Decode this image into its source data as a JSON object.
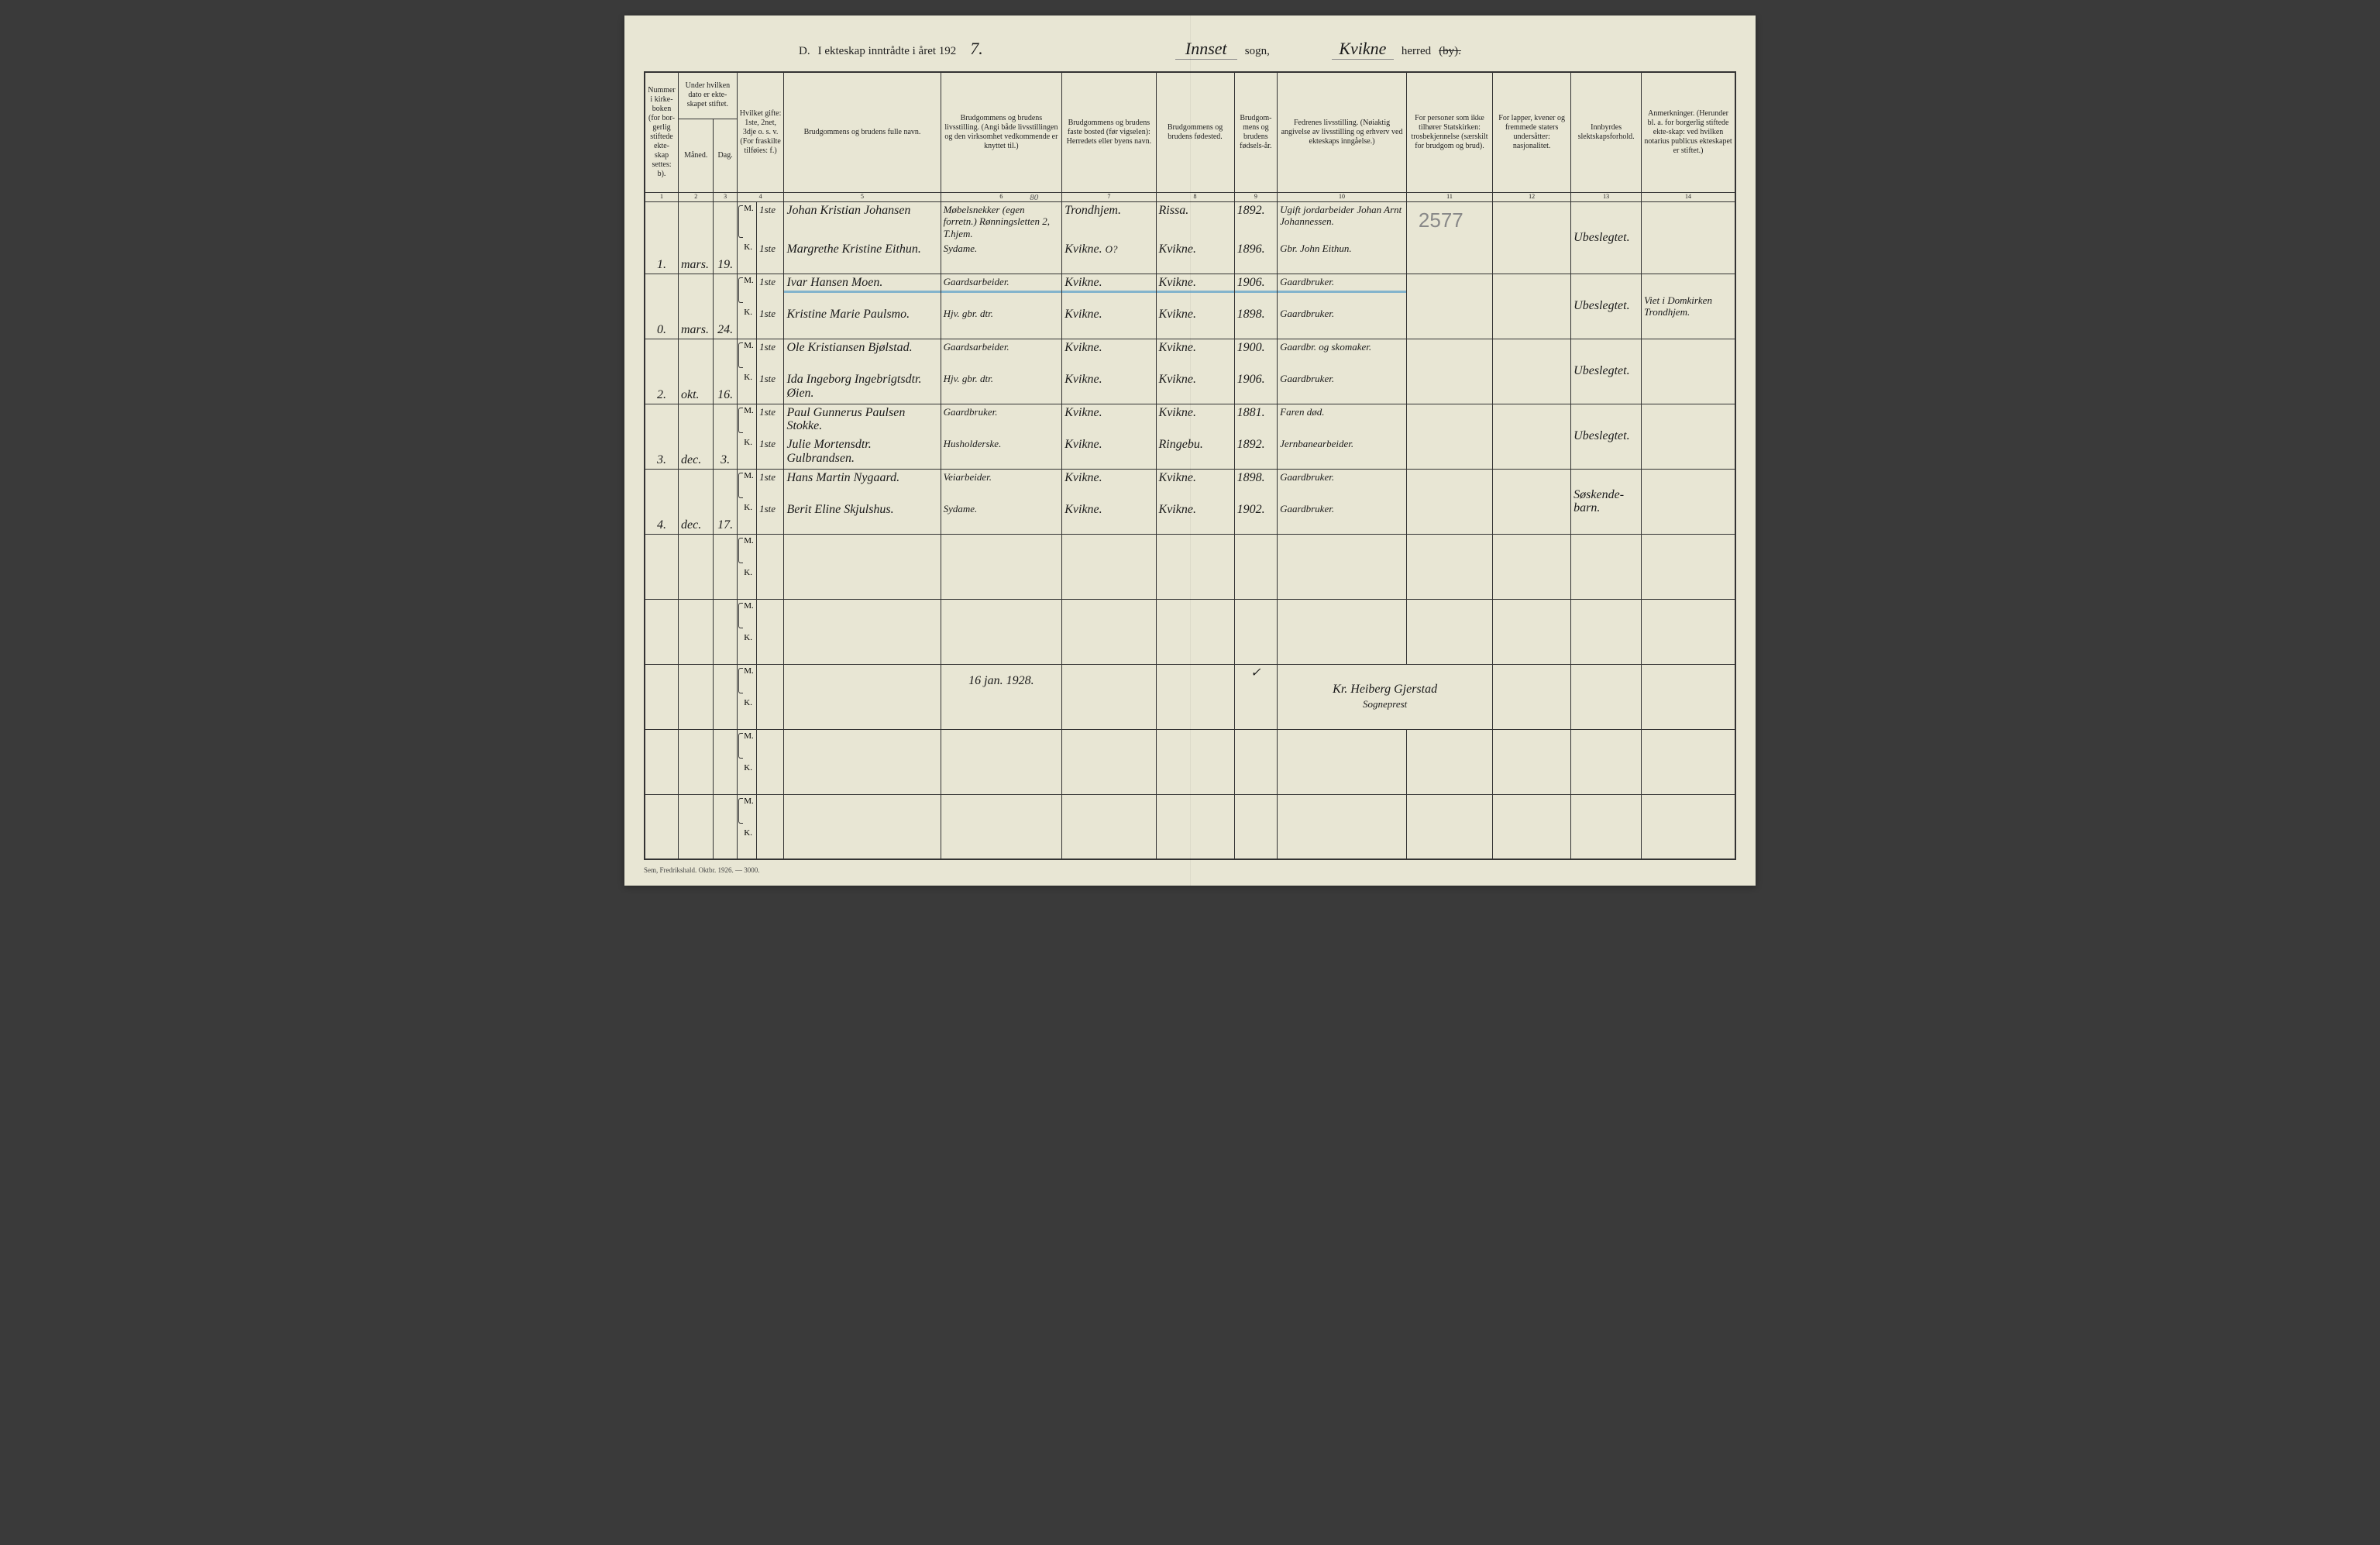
{
  "header": {
    "section_letter": "D.",
    "title_printed_1": "I ekteskap inntrådte i året 192",
    "year_digit": "7.",
    "sogn_label": "sogn,",
    "sogn_value": "Innset",
    "herred_label": "herred",
    "herred_value": "Kvikne",
    "by_struck": "(by)."
  },
  "columns": [
    "Nummer i kirke-boken (for bor-gerlig stiftede ekte-skap settes: b).",
    "Under hvilken dato er ekte-skapet stiftet.",
    "",
    "Hvilket gifte: 1ste, 2net, 3dje o. s. v. (For fraskilte tilføies: f.)",
    "Brudgommens og brudens fulle navn.",
    "Brudgommens og brudens livsstilling. (Angi både livsstillingen og den virksomhet vedkommende er knyttet til.)",
    "Brudgommens og brudens faste bosted (før vigselen): Herredets eller byens navn.",
    "Brudgommens og brudens fødested.",
    "Brudgom-mens og brudens fødsels-år.",
    "Fedrenes livsstilling. (Nøiaktig angivelse av livsstilling og erhverv ved ekteskaps inngåelse.)",
    "For personer som ikke tilhører Statskirken: trosbekjennelse (særskilt for brudgom og brud).",
    "For lapper, kvener og fremmede staters undersåtter: nasjonalitet.",
    "Innbyrdes slektskapsforhold.",
    "Anmerkninger. (Herunder bl. a. for borgerlig stiftede ekte-skap: ved hvilken notarius publicus ekteskapet er stiftet.)"
  ],
  "sub_columns": {
    "col2a": "Måned.",
    "col2b": "Dag."
  },
  "colnums": [
    "1",
    "2",
    "3",
    "4",
    "5",
    "6",
    "7",
    "8",
    "9",
    "10",
    "11",
    "12",
    "13",
    "14"
  ],
  "stamp": {
    "page_num": "80"
  },
  "entries": [
    {
      "num": "1.",
      "month": "mars.",
      "day": "19.",
      "m": {
        "gifte": "1ste",
        "name": "Johan Kristian Johansen",
        "occ": "Møbelsnekker (egen forretn.) Rønningsletten 2, T.hjem.",
        "res": "Trondhjem.",
        "birthplace": "Rissa.",
        "year": "1892.",
        "father": "Ugift jordarbeider Johan Arnt Johannessen."
      },
      "k": {
        "gifte": "1ste",
        "name": "Margrethe Kristine Eithun.",
        "occ": "Sydame.",
        "res": "Kvikne.",
        "res_note": "O?",
        "birthplace": "Kvikne.",
        "year": "1896.",
        "father": "Gbr. John Eithun."
      },
      "pencil": "2577",
      "slekt": "Ubeslegtet.",
      "anm": ""
    },
    {
      "num": "0.",
      "month": "mars.",
      "day": "24.",
      "m": {
        "gifte": "1ste",
        "name": "Ivar Hansen Moen.",
        "occ": "Gaardsarbeider.",
        "res": "Kvikne.",
        "birthplace": "Kvikne.",
        "year": "1906.",
        "father": "Gaardbruker."
      },
      "k": {
        "gifte": "1ste",
        "name": "Kristine Marie Paulsmo.",
        "occ": "Hjv. gbr. dtr.",
        "res": "Kvikne.",
        "birthplace": "Kvikne.",
        "year": "1898.",
        "father": "Gaardbruker."
      },
      "slekt": "Ubeslegtet.",
      "anm": "Viet i Domkirken Trondhjem.",
      "blue_strike": true
    },
    {
      "num": "2.",
      "month": "okt.",
      "day": "16.",
      "m": {
        "gifte": "1ste",
        "name": "Ole Kristiansen Bjølstad.",
        "occ": "Gaardsarbeider.",
        "res": "Kvikne.",
        "birthplace": "Kvikne.",
        "year": "1900.",
        "father": "Gaardbr. og skomaker."
      },
      "k": {
        "gifte": "1ste",
        "name": "Ida Ingeborg Ingebrigtsdtr. Øien.",
        "occ": "Hjv. gbr. dtr.",
        "res": "Kvikne.",
        "birthplace": "Kvikne.",
        "year": "1906.",
        "father": "Gaardbruker."
      },
      "slekt": "Ubeslegtet.",
      "anm": ""
    },
    {
      "num": "3.",
      "month": "dec.",
      "day": "3.",
      "m": {
        "gifte": "1ste",
        "name": "Paul Gunnerus Paulsen Stokke.",
        "occ": "Gaardbruker.",
        "res": "Kvikne.",
        "birthplace": "Kvikne.",
        "year": "1881.",
        "father": "Faren død."
      },
      "k": {
        "gifte": "1ste",
        "name": "Julie Mortensdtr. Gulbrandsen.",
        "occ": "Husholderske.",
        "res": "Kvikne.",
        "birthplace": "Ringebu.",
        "year": "1892.",
        "father": "Jernbanearbeider."
      },
      "slekt": "Ubeslegtet.",
      "anm": ""
    },
    {
      "num": "4.",
      "month": "dec.",
      "day": "17.",
      "m": {
        "gifte": "1ste",
        "name": "Hans Martin Nygaard.",
        "occ": "Veiarbeider.",
        "res": "Kvikne.",
        "birthplace": "Kvikne.",
        "year": "1898.",
        "father": "Gaardbruker."
      },
      "k": {
        "gifte": "1ste",
        "name": "Berit Eline Skjulshus.",
        "occ": "Sydame.",
        "res": "Kvikne.",
        "birthplace": "Kvikne.",
        "year": "1902.",
        "father": "Gaardbruker."
      },
      "slekt": "Søskende-barn.",
      "anm": ""
    }
  ],
  "signature": {
    "date": "16 jan. 1928.",
    "mark": "✓",
    "name": "Kr. Heiberg Gjerstad",
    "title": "Sogneprest"
  },
  "footer": "Sem, Fredrikshald. Oktbr. 1926. — 3000.",
  "blank_rows_before_sig": 2,
  "blank_rows_after_sig": 2,
  "colwidths": {
    "c1": "40px",
    "c2": "45px",
    "c3": "30px",
    "c3b": "20px",
    "c4": "35px",
    "c5": "200px",
    "c6": "155px",
    "c7": "120px",
    "c8": "100px",
    "c9": "55px",
    "c10": "165px",
    "c11": "110px",
    "c12": "100px",
    "c13": "90px",
    "c14": "120px"
  }
}
